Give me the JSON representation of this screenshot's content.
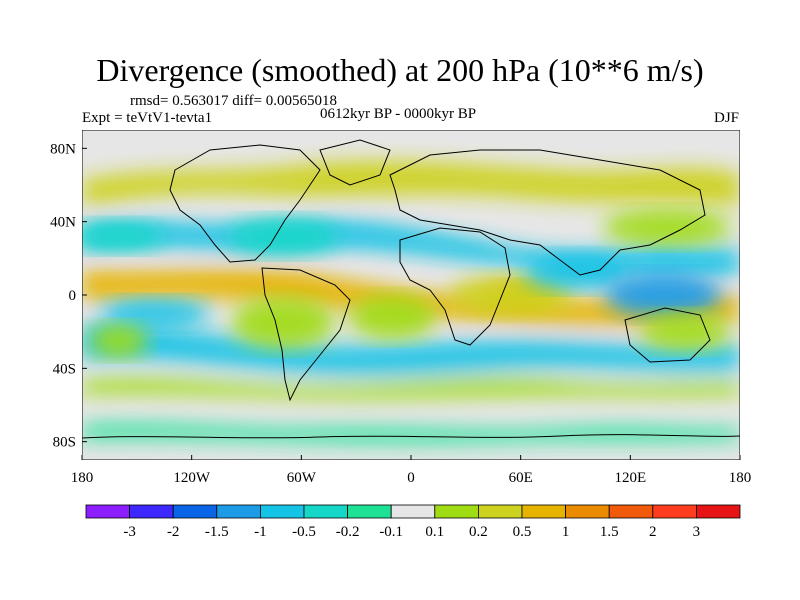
{
  "title": "Divergence (smoothed) at 200 hPa (10**6 m/s)",
  "stats_line": "rmsd= 0.563017 diff= 0.00565018",
  "experiment": "Expt = teVtV1-tevta1",
  "period": "0612kyr BP - 0000kyr BP",
  "season": "DJF",
  "chart_data": {
    "type": "map",
    "variable": "Divergence (smoothed) at 200 hPa",
    "units": "10**6 m/s",
    "lon_range": [
      -180,
      180
    ],
    "lat_range": [
      -90,
      90
    ],
    "lon_ticks": [
      "180",
      "120W",
      "60W",
      "0",
      "60E",
      "120E",
      "180"
    ],
    "lat_ticks": [
      "80N",
      "40N",
      "0",
      "40S",
      "80S"
    ],
    "colorbar": {
      "labels": [
        "-3",
        "-2",
        "-1.5",
        "-1",
        "-0.5",
        "-0.2",
        "-0.1",
        "0.1",
        "0.2",
        "0.5",
        "1",
        "1.5",
        "2",
        "3"
      ],
      "colors": [
        "#8c1eff",
        "#3c28ff",
        "#0a64e6",
        "#1e9be6",
        "#14c3e6",
        "#14d7c8",
        "#1ee196",
        "#e6e6e6",
        "#a0dc14",
        "#cdd21e",
        "#e6b400",
        "#eb8c00",
        "#f05a0a",
        "#ff3c1e",
        "#e61414"
      ]
    },
    "regions": [
      {
        "type": "pos",
        "level": 10,
        "lon": 60,
        "lat": 0,
        "rlon": 18,
        "rlat": 7
      },
      {
        "type": "pos",
        "level": 9,
        "lon": 55,
        "lat": 0,
        "rlon": 34,
        "rlat": 11
      },
      {
        "type": "neg",
        "level": 4,
        "lon": 90,
        "lat": 13,
        "rlon": 28,
        "rlat": 10
      },
      {
        "type": "neg",
        "level": 3,
        "lon": 138,
        "lat": 0,
        "rlon": 32,
        "rlat": 12
      },
      {
        "type": "pos",
        "level": 8,
        "lon": 140,
        "lat": 37,
        "rlon": 35,
        "rlat": 10
      },
      {
        "type": "neg",
        "level": 5,
        "lon": -160,
        "lat": 32,
        "rlon": 25,
        "rlat": 8
      },
      {
        "type": "neg",
        "level": 5,
        "lon": -70,
        "lat": 32,
        "rlon": 30,
        "rlat": 10
      },
      {
        "type": "pos",
        "level": 8,
        "lon": -70,
        "lat": -15,
        "rlon": 28,
        "rlat": 14
      },
      {
        "type": "neg",
        "level": 4,
        "lon": -140,
        "lat": -10,
        "rlon": 30,
        "rlat": 8
      },
      {
        "type": "pos",
        "level": 8,
        "lon": -160,
        "lat": -25,
        "rlon": 16,
        "rlat": 9
      },
      {
        "type": "pos",
        "level": 8,
        "lon": -10,
        "lat": -12,
        "rlon": 24,
        "rlat": 12
      },
      {
        "type": "pos",
        "level": 8,
        "lon": 150,
        "lat": -20,
        "rlon": 25,
        "rlat": 10
      }
    ]
  }
}
